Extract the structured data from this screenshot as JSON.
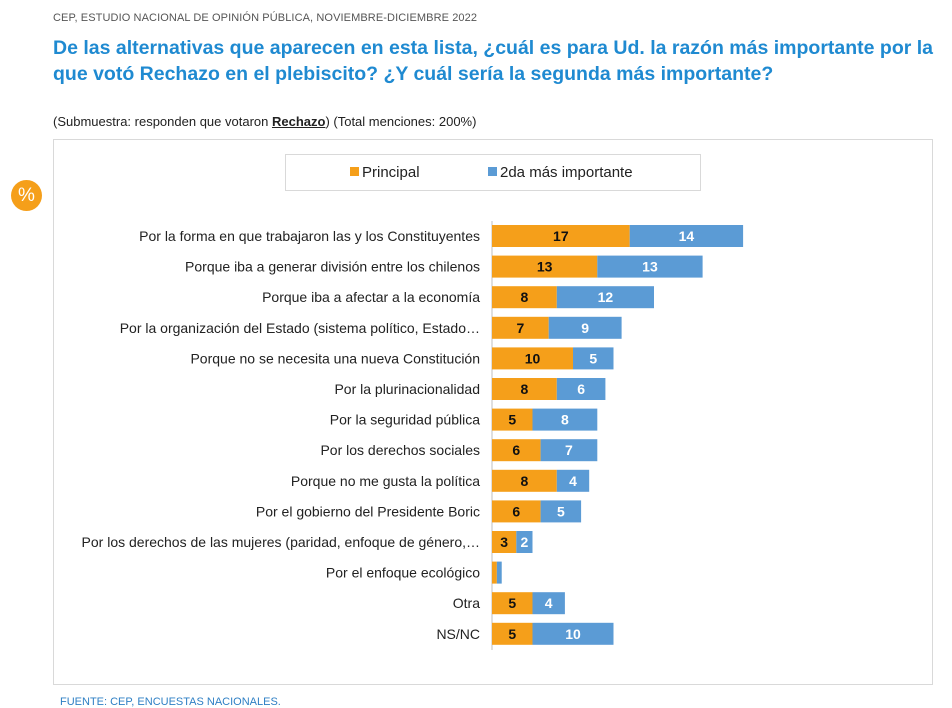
{
  "header": {
    "source": "CEP, ESTUDIO NACIONAL DE OPINIÓN PÚBLICA, NOVIEMBRE-DICIEMBRE 2022",
    "title": "De las alternativas que aparecen en esta lista, ¿cuál es para Ud. la razón más importante por la que votó Rechazo en el plebiscito? ¿Y cuál sería la segunda más importante?",
    "subtitle_pre": "(Submuestra: responden que votaron ",
    "subtitle_em": "Rechazo",
    "subtitle_post": ") (Total menciones: 200%)"
  },
  "badge": {
    "text": "%"
  },
  "footer": {
    "source": "FUENTE: CEP, ENCUESTAS NACIONALES."
  },
  "colors": {
    "principal": "#f59f1a",
    "segunda": "#5b9bd5",
    "title": "#1f8ad1"
  },
  "chart_data": {
    "type": "bar",
    "orientation": "horizontal",
    "stacked": true,
    "legend_position": "top",
    "grid": false,
    "xlim": [
      0,
      100
    ],
    "categories": [
      "Por la forma en que trabajaron las y los Constituyentes",
      "Porque iba a generar división entre los chilenos",
      "Porque iba a afectar a la economía",
      "Por la organización del Estado (sistema político, Estado…",
      "Porque no se necesita una nueva Constitución",
      "Por la plurinacionalidad",
      "Por la seguridad pública",
      "Por los derechos sociales",
      "Porque no me gusta la política",
      "Por el gobierno del Presidente Boric",
      "Por los derechos de las mujeres (paridad, enfoque de género,…",
      "Por el enfoque ecológico",
      "Otra",
      "NS/NC"
    ],
    "series": [
      {
        "name": "Principal",
        "color": "#f59f1a",
        "values": [
          17,
          13,
          8,
          7,
          10,
          8,
          5,
          6,
          8,
          6,
          3,
          0.6,
          5,
          5
        ]
      },
      {
        "name": "2da más importante",
        "color": "#5b9bd5",
        "values": [
          14,
          13,
          12,
          9,
          5,
          6,
          8,
          7,
          4,
          5,
          2,
          0.6,
          4,
          10
        ]
      }
    ],
    "data_labels": [
      [
        "17",
        "13",
        "8",
        "7",
        "10",
        "8",
        "5",
        "6",
        "8",
        "6",
        "3",
        "",
        "5",
        "5"
      ],
      [
        "14",
        "13",
        "12",
        "9",
        "5",
        "6",
        "8",
        "7",
        "4",
        "5",
        "2",
        "",
        "4",
        "10"
      ]
    ]
  }
}
